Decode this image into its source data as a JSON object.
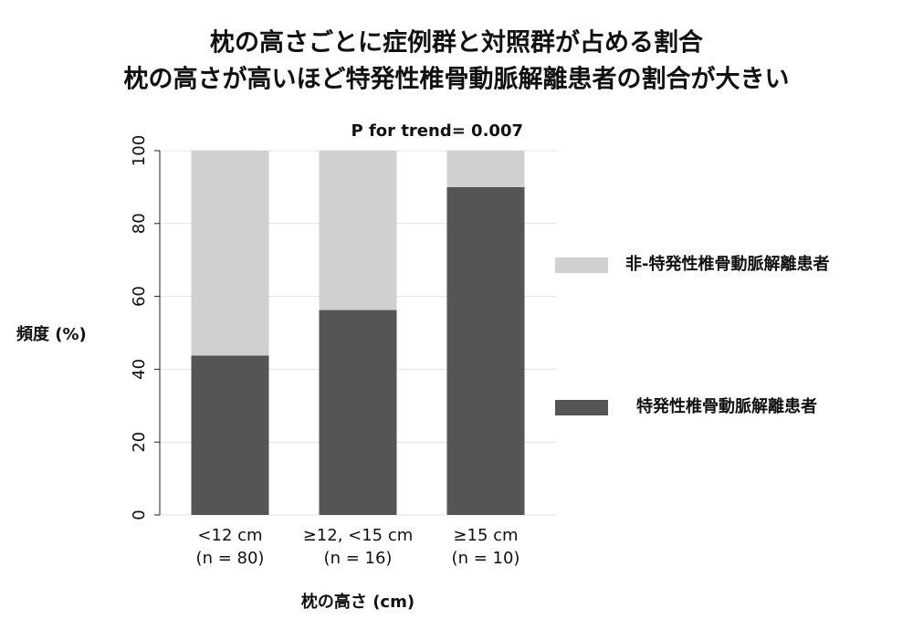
{
  "chart_data": {
    "type": "bar",
    "stacked": true,
    "title": [
      "枕の高さごとに症例群と対照群が占める割合",
      "枕の高さが高いほど特発性椎骨動脈解離患者の割合が大きい"
    ],
    "annotation": "P for trend= 0.007",
    "y_label": "頻度 (%)",
    "x_label": "枕の高さ (cm)",
    "categories": [
      [
        "<12 cm",
        "(n = 80)"
      ],
      [
        "≥12, <15 cm",
        "(n = 16)"
      ],
      [
        "≥15 cm",
        "(n = 10)"
      ]
    ],
    "series": [
      {
        "name": "特発性椎骨動脈解離患者",
        "color": "#555555",
        "values": [
          43.75,
          56.25,
          90
        ]
      },
      {
        "name": "非-特発性椎骨動脈解離患者",
        "color": "#d0d0d0",
        "values": [
          56.25,
          43.75,
          10
        ]
      }
    ],
    "ylim": [
      0,
      100
    ],
    "yticks": [
      0,
      20,
      40,
      60,
      80,
      100
    ],
    "grid": true
  }
}
